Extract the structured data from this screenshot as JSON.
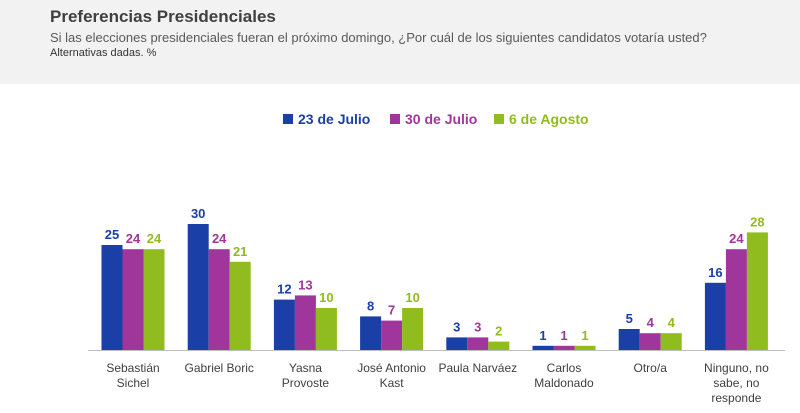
{
  "header": {
    "title": "Preferencias Presidenciales",
    "subtitle": "Si las elecciones presidenciales fueran el próximo domingo, ¿Por cuál de los siguientes candidatos votaría usted?",
    "note": "Alternativas dadas. %"
  },
  "chart_data": {
    "type": "bar",
    "categories": [
      [
        "Sebastián",
        "Sichel"
      ],
      [
        "Gabriel Boric"
      ],
      [
        "Yasna",
        "Provoste"
      ],
      [
        "José Antonio",
        "Kast"
      ],
      [
        "Paula Narváez"
      ],
      [
        "Carlos",
        "Maldonado"
      ],
      [
        "Otro/a"
      ],
      [
        "Ninguno, no",
        "sabe, no",
        "responde"
      ]
    ],
    "series": [
      {
        "name": "23 de Julio",
        "color": "#1a3fa6",
        "values": [
          25,
          30,
          12,
          8,
          3,
          1,
          5,
          16
        ]
      },
      {
        "name": "30 de Julio",
        "color": "#a0359b",
        "values": [
          24,
          24,
          13,
          7,
          3,
          1,
          4,
          24
        ]
      },
      {
        "name": "6 de Agosto",
        "color": "#90bc1f",
        "values": [
          24,
          21,
          10,
          10,
          2,
          1,
          4,
          28
        ]
      }
    ],
    "ylim": [
      0,
      30
    ],
    "legend": "top-center",
    "grid": false,
    "data_labels": true
  }
}
